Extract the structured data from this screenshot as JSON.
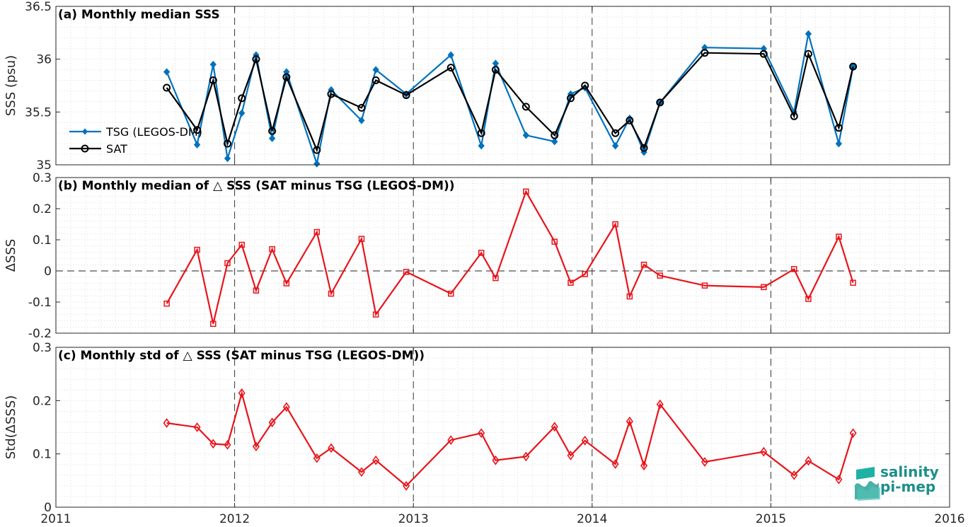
{
  "logo": {
    "line1": "salinity",
    "line2": "pi-mep"
  },
  "x_ticks": [
    "2011",
    "2012",
    "2013",
    "2014",
    "2015",
    "2016"
  ],
  "colors": {
    "tsg": "#0072BD",
    "sat": "#000000",
    "delta": "#E8141B",
    "grid": "#d9d9d9"
  },
  "chart_data": [
    {
      "type": "line",
      "title": "(a) Monthly median SSS",
      "xlabel": "",
      "ylabel": "SSS (psu)",
      "xlim": [
        2011,
        2016
      ],
      "ylim": [
        35,
        36.5
      ],
      "yticks": [
        35,
        35.5,
        36,
        36.5
      ],
      "ytick_labels": [
        "35",
        "35.5",
        "36",
        "36.5"
      ],
      "grid": true,
      "legend_position": "left",
      "series": [
        {
          "name": "TSG (LEGOS-DM)",
          "marker": "diamond",
          "color": "#0072BD",
          "x": [
            2011.62,
            2011.79,
            2011.88,
            2011.96,
            2012.04,
            2012.12,
            2012.21,
            2012.29,
            2012.46,
            2012.54,
            2012.71,
            2012.79,
            2012.96,
            2013.21,
            2013.38,
            2013.46,
            2013.63,
            2013.79,
            2013.88,
            2013.96,
            2014.13,
            2014.21,
            2014.29,
            2014.38,
            2014.63,
            2014.96,
            2015.13,
            2015.21,
            2015.38,
            2015.46
          ],
          "y": [
            35.88,
            35.19,
            35.95,
            35.06,
            35.49,
            36.04,
            35.25,
            35.88,
            35.01,
            35.71,
            35.42,
            35.9,
            35.67,
            36.04,
            35.18,
            35.96,
            35.28,
            35.22,
            35.67,
            35.73,
            35.18,
            35.44,
            35.12,
            35.59,
            36.11,
            36.1,
            35.5,
            36.24,
            35.2,
            35.93
          ]
        },
        {
          "name": "SAT",
          "marker": "circle",
          "color": "#000000",
          "x": [
            2011.62,
            2011.79,
            2011.88,
            2011.96,
            2012.04,
            2012.12,
            2012.21,
            2012.29,
            2012.46,
            2012.54,
            2012.71,
            2012.79,
            2012.96,
            2013.21,
            2013.38,
            2013.46,
            2013.63,
            2013.79,
            2013.88,
            2013.96,
            2014.13,
            2014.21,
            2014.29,
            2014.38,
            2014.63,
            2014.96,
            2015.13,
            2015.21,
            2015.38,
            2015.46
          ],
          "y": [
            35.73,
            35.33,
            35.8,
            35.2,
            35.63,
            36.0,
            35.32,
            35.83,
            35.14,
            35.67,
            35.54,
            35.8,
            35.66,
            35.92,
            35.3,
            35.9,
            35.55,
            35.28,
            35.63,
            35.75,
            35.3,
            35.42,
            35.16,
            35.59,
            36.06,
            36.05,
            35.46,
            36.05,
            35.35,
            35.93
          ]
        }
      ]
    },
    {
      "type": "line",
      "title": "(b) Monthly median of △ SSS (SAT minus TSG (LEGOS-DM))",
      "xlabel": "",
      "ylabel": "ΔSSS",
      "xlim": [
        2011,
        2016
      ],
      "ylim": [
        -0.2,
        0.3
      ],
      "yticks": [
        -0.2,
        -0.1,
        0,
        0.1,
        0.2,
        0.3
      ],
      "ytick_labels": [
        "-0.2",
        "-0.1",
        "0",
        "0.1",
        "0.2",
        "0.3"
      ],
      "zero_line": true,
      "grid": true,
      "series": [
        {
          "name": "",
          "marker": "square",
          "color": "#E8141B",
          "x": [
            2011.62,
            2011.79,
            2011.88,
            2011.96,
            2012.04,
            2012.12,
            2012.21,
            2012.29,
            2012.46,
            2012.54,
            2012.71,
            2012.79,
            2012.96,
            2013.21,
            2013.38,
            2013.46,
            2013.63,
            2013.79,
            2013.88,
            2013.96,
            2014.13,
            2014.21,
            2014.29,
            2014.38,
            2014.63,
            2014.96,
            2015.13,
            2015.21,
            2015.38,
            2015.46
          ],
          "y": [
            -0.105,
            0.068,
            -0.17,
            0.025,
            0.084,
            -0.063,
            0.07,
            -0.04,
            0.125,
            -0.073,
            0.103,
            -0.14,
            -0.003,
            -0.073,
            0.058,
            -0.023,
            0.255,
            0.094,
            -0.038,
            -0.01,
            0.15,
            -0.082,
            0.02,
            -0.015,
            -0.047,
            -0.052,
            0.006,
            -0.09,
            0.11,
            -0.038
          ]
        }
      ]
    },
    {
      "type": "line",
      "title": "(c) Monthly std of △ SSS (SAT minus TSG (LEGOS-DM))",
      "xlabel": "",
      "ylabel": "Std(ΔSSS)",
      "xlim": [
        2011,
        2016
      ],
      "ylim": [
        0,
        0.3
      ],
      "yticks": [
        0,
        0.1,
        0.2,
        0.3
      ],
      "ytick_labels": [
        "0",
        "0.1",
        "0.2",
        "0.3"
      ],
      "grid": true,
      "series": [
        {
          "name": "",
          "marker": "diamond-open",
          "color": "#E8141B",
          "x": [
            2011.62,
            2011.79,
            2011.88,
            2011.96,
            2012.04,
            2012.12,
            2012.21,
            2012.29,
            2012.46,
            2012.54,
            2012.71,
            2012.79,
            2012.96,
            2013.21,
            2013.38,
            2013.46,
            2013.63,
            2013.79,
            2013.88,
            2013.96,
            2014.13,
            2014.21,
            2014.29,
            2014.38,
            2014.63,
            2014.96,
            2015.13,
            2015.21,
            2015.38,
            2015.46
          ],
          "y": [
            0.158,
            0.15,
            0.119,
            0.117,
            0.214,
            0.114,
            0.159,
            0.188,
            0.092,
            0.111,
            0.066,
            0.088,
            0.04,
            0.126,
            0.139,
            0.088,
            0.095,
            0.151,
            0.097,
            0.125,
            0.081,
            0.161,
            0.078,
            0.193,
            0.085,
            0.104,
            0.06,
            0.087,
            0.052,
            0.139
          ]
        }
      ]
    }
  ]
}
